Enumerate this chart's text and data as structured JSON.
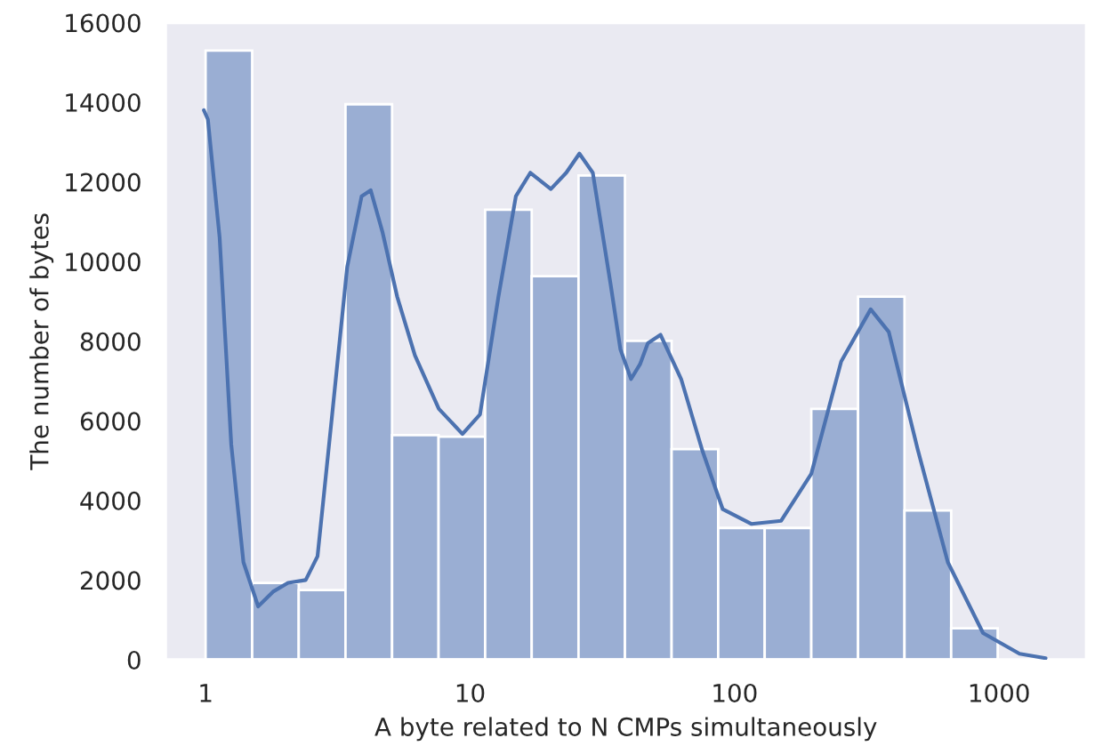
{
  "chart_data": {
    "type": "histogram",
    "xlabel": "A byte related to N CMPs simultaneously",
    "ylabel": "The number of bytes",
    "series": [
      {
        "type": "histogram",
        "color": "#9aaed3",
        "bins": [
          1,
          1.5,
          2.25,
          3.38,
          5.07,
          7.6,
          11.4,
          17.1,
          25.7,
          38.5,
          57.8,
          86.7,
          130,
          195,
          293,
          439,
          659,
          988
        ],
        "values": [
          15300,
          1930,
          1750,
          13950,
          5640,
          5600,
          11300,
          9630,
          12160,
          8010,
          5290,
          3310,
          3310,
          6300,
          9120,
          3750,
          790
        ]
      },
      {
        "type": "line",
        "color": "#4c72b0",
        "x": [
          0.985,
          1.02,
          1.13,
          1.25,
          1.39,
          1.58,
          1.8,
          2.05,
          2.39,
          2.65,
          3.01,
          3.43,
          3.89,
          4.21,
          4.66,
          5.3,
          6.19,
          7.62,
          9.36,
          10.9,
          12.8,
          14.9,
          16.9,
          20.2,
          23.1,
          25.9,
          29.1,
          34,
          37,
          40.6,
          43.9,
          47,
          52.5,
          62.8,
          75.4,
          90.2,
          116,
          150,
          195,
          253,
          327,
          383,
          493,
          640,
          870,
          1195,
          1500
        ],
        "values": [
          13800,
          13570,
          10600,
          5410,
          2450,
          1340,
          1710,
          1930,
          2000,
          2600,
          6160,
          9860,
          11640,
          11790,
          10750,
          9120,
          7640,
          6300,
          5670,
          6160,
          9120,
          11640,
          12230,
          11820,
          12230,
          12710,
          12230,
          9420,
          7800,
          7050,
          7420,
          7950,
          8160,
          7050,
          5270,
          3780,
          3410,
          3490,
          4670,
          7490,
          8800,
          8230,
          5270,
          2450,
          670,
          150,
          40
        ]
      }
    ],
    "log": "x",
    "xlim": [
      0.705,
      2140
    ],
    "ylim": [
      0,
      16000
    ],
    "xticks": [
      1,
      10,
      100,
      1000
    ],
    "yticks": [
      0,
      2000,
      4000,
      6000,
      8000,
      10000,
      12000,
      14000,
      16000
    ],
    "grid": false,
    "legend": false
  }
}
